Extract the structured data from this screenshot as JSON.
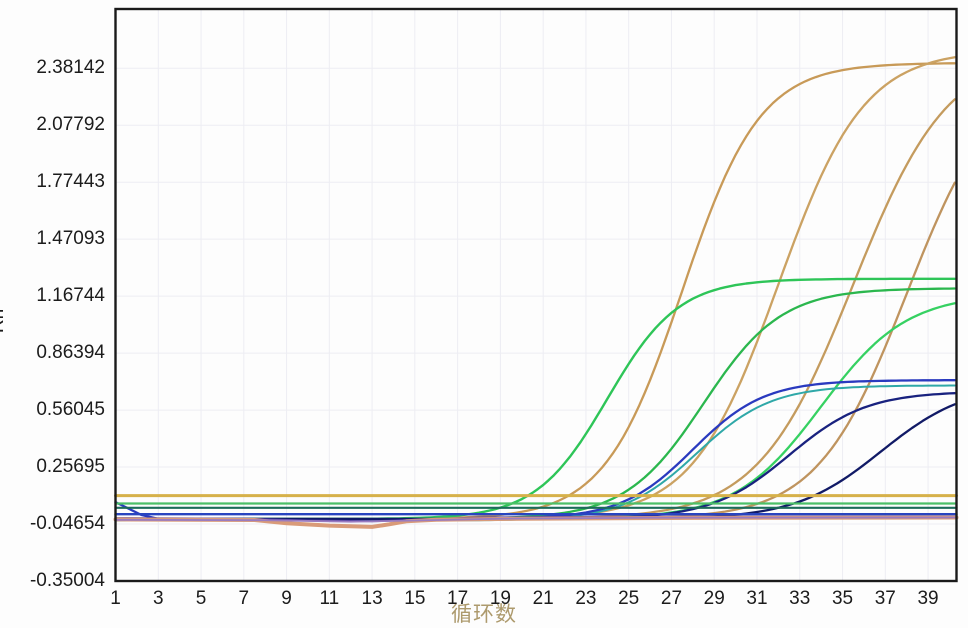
{
  "chart_data": {
    "type": "line",
    "title": "",
    "xlabel": "循环数",
    "ylabel": "Rn",
    "legend": "none",
    "grid": true,
    "background": "#fdfdfd",
    "grid_color": "#ededf3",
    "axis_color": "#1a1a1a",
    "xlim": [
      1,
      40.33
    ],
    "ylim": [
      -0.35004,
      2.697
    ],
    "x_ticks": [
      1,
      3,
      5,
      7,
      9,
      11,
      13,
      15,
      17,
      19,
      21,
      23,
      25,
      27,
      29,
      31,
      33,
      35,
      37,
      39
    ],
    "y_ticks": [
      "2.38142",
      "2.07792",
      "1.77443",
      "1.47093",
      "1.16744",
      "0.86394",
      "0.56045",
      "0.25695",
      "-0.04654",
      "-0.35004"
    ],
    "y_tick_values": [
      2.38142,
      2.07792,
      1.77443,
      1.47093,
      1.16744,
      0.86394,
      0.56045,
      0.25695,
      -0.04654,
      -0.35004
    ],
    "series": [
      {
        "name": "amplification-curve-orange-1",
        "kind": "sigmoid",
        "color": "#c89a58",
        "width": 2.3,
        "baseline": -0.02,
        "amplitude": 2.43,
        "midpoint": 27.5,
        "slope": 0.55,
        "ct": 22.2,
        "plateau": 2.41
      },
      {
        "name": "amplification-curve-orange-2",
        "kind": "sigmoid",
        "color": "#cba263",
        "width": 2.3,
        "baseline": -0.02,
        "amplitude": 2.5,
        "midpoint": 32.0,
        "slope": 0.5,
        "ct": 26.1,
        "end_value": 2.43
      },
      {
        "name": "amplification-curve-orange-3",
        "kind": "sigmoid",
        "color": "#c49b5e",
        "width": 2.3,
        "baseline": -0.02,
        "amplitude": 2.5,
        "midpoint": 35.5,
        "slope": 0.45,
        "ct": 29.0,
        "end_value": 2.2
      },
      {
        "name": "amplification-curve-orange-4",
        "kind": "sigmoid",
        "color": "#bf945f",
        "width": 2.3,
        "baseline": -0.02,
        "amplitude": 2.4,
        "midpoint": 38.0,
        "slope": 0.48,
        "ct": 32.0,
        "end_value": 1.76
      },
      {
        "name": "amplification-curve-green-1",
        "kind": "sigmoid",
        "color": "#2ec558",
        "width": 2.4,
        "baseline": -0.02,
        "amplitude": 1.28,
        "midpoint": 24.0,
        "slope": 0.6,
        "ct": 20.4,
        "plateau": 1.26
      },
      {
        "name": "amplification-curve-green-2",
        "kind": "sigmoid",
        "color": "#2bb74e",
        "width": 2.3,
        "baseline": -0.02,
        "amplitude": 1.23,
        "midpoint": 28.5,
        "slope": 0.55,
        "ct": 24.5,
        "end_value": 1.2
      },
      {
        "name": "amplification-curve-green-3",
        "kind": "sigmoid",
        "color": "#36d162",
        "width": 2.3,
        "baseline": -0.02,
        "amplitude": 1.2,
        "midpoint": 34.0,
        "slope": 0.5,
        "ct": 29.7,
        "end_value": 1.13
      },
      {
        "name": "amplification-curve-teal",
        "kind": "sigmoid",
        "color": "#2fa8a8",
        "width": 2.0,
        "baseline": -0.028,
        "amplitude": 0.72,
        "midpoint": 28.2,
        "slope": 0.58,
        "ct": 25.6,
        "plateau": 0.69
      },
      {
        "name": "amplification-curve-blue-1",
        "kind": "sigmoid",
        "color": "#2a3abf",
        "width": 2.3,
        "baseline": -0.02,
        "amplitude": 0.74,
        "midpoint": 28.0,
        "slope": 0.6,
        "ct": 25.4,
        "plateau": 0.72,
        "head": [
          [
            1,
            0.07
          ],
          [
            1.5,
            0.042
          ],
          [
            2.2,
            0.002
          ],
          [
            3,
            -0.019
          ]
        ]
      },
      {
        "name": "amplification-curve-navy-2",
        "kind": "sigmoid",
        "color": "#19227f",
        "width": 2.3,
        "baseline": -0.02,
        "amplitude": 0.68,
        "midpoint": 32.5,
        "slope": 0.55,
        "ct": 29.8,
        "end_value": 0.66
      },
      {
        "name": "amplification-curve-navy-3",
        "kind": "sigmoid",
        "color": "#111a66",
        "width": 2.3,
        "baseline": -0.02,
        "amplitude": 0.72,
        "midpoint": 36.8,
        "slope": 0.5,
        "ct": 33.7,
        "end_value": 0.6
      },
      {
        "name": "threshold-line-gold",
        "kind": "flat",
        "color": "#d6b14a",
        "width": 3.0,
        "value": 0.105
      },
      {
        "name": "threshold-line-light-green",
        "kind": "flat",
        "color": "#4cc068",
        "width": 2.2,
        "value": 0.063
      },
      {
        "name": "threshold-line-dark-teal",
        "kind": "flat",
        "color": "#1c6b5a",
        "width": 2.2,
        "value": 0.04
      },
      {
        "name": "threshold-line-blue",
        "kind": "flat",
        "color": "#2844c0",
        "width": 2.4,
        "value": 0.006
      },
      {
        "name": "baseline-curve-purple",
        "kind": "points",
        "color": "#4a3a9e",
        "width": 2.0,
        "points": [
          [
            1,
            -0.015
          ],
          [
            7,
            -0.018
          ],
          [
            10,
            -0.028
          ],
          [
            13,
            -0.032
          ],
          [
            15,
            -0.024
          ],
          [
            18,
            -0.012
          ],
          [
            24,
            -0.008
          ],
          [
            40.33,
            -0.007
          ]
        ]
      },
      {
        "name": "baseline-curve-salmon",
        "kind": "points",
        "color": "#d99b79",
        "width": 4.0,
        "points": [
          [
            1,
            -0.022
          ],
          [
            7.5,
            -0.025
          ],
          [
            9,
            -0.042
          ],
          [
            11,
            -0.055
          ],
          [
            13,
            -0.062
          ],
          [
            13.8,
            -0.048
          ],
          [
            14.6,
            -0.032
          ],
          [
            16,
            -0.024
          ],
          [
            20,
            -0.018
          ],
          [
            28,
            -0.014
          ],
          [
            40.33,
            -0.012
          ]
        ]
      },
      {
        "name": "baseline-curve-violet",
        "kind": "points",
        "color": "#9a7bc0",
        "width": 1.8,
        "points": [
          [
            1,
            -0.024
          ],
          [
            8,
            -0.026
          ],
          [
            12,
            -0.034
          ],
          [
            15,
            -0.028
          ],
          [
            19,
            -0.018
          ],
          [
            26,
            -0.013
          ],
          [
            40.33,
            -0.012
          ]
        ]
      }
    ]
  }
}
